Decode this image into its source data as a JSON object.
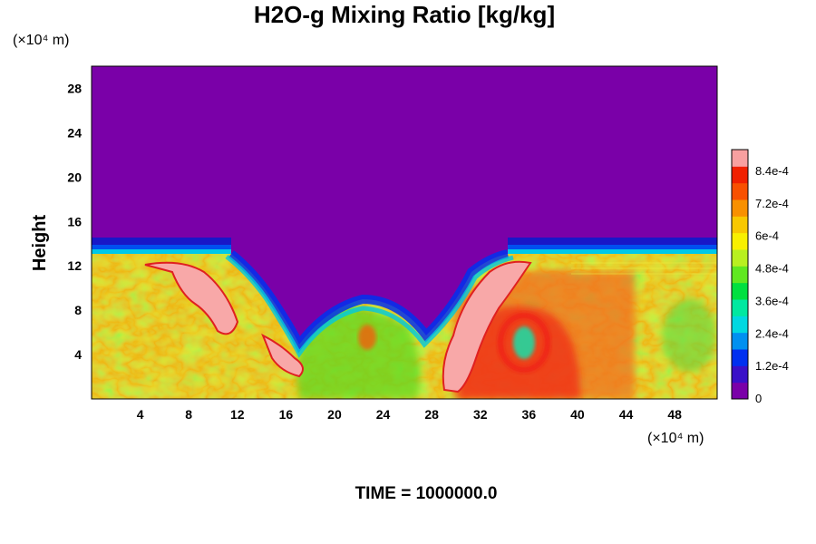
{
  "chart_data": {
    "type": "heatmap",
    "title": "H2O-g Mixing Ratio [kg/kg]",
    "ylabel": "Height",
    "xlabel": "",
    "y_unit": "(×10⁴ m)",
    "x_unit": "(×10⁴ m)",
    "xlim": [
      0,
      51.5
    ],
    "ylim": [
      0,
      30
    ],
    "x_ticks": [
      "4",
      "8",
      "12",
      "16",
      "20",
      "24",
      "28",
      "32",
      "36",
      "40",
      "44",
      "48"
    ],
    "y_ticks": [
      "4",
      "8",
      "12",
      "16",
      "20",
      "24",
      "28"
    ],
    "colorbar": {
      "range": [
        0,
        0.00092
      ],
      "labels": [
        "0",
        "1.2e-4",
        "2.4e-4",
        "3.6e-4",
        "4.8e-4",
        "6e-4",
        "7.2e-4",
        "8.4e-4"
      ],
      "label_values": [
        0,
        0.00012,
        0.00024,
        0.00036,
        0.00048,
        0.0006,
        0.00072,
        0.00084
      ],
      "colors": [
        "#7a00a8",
        "#3a10c8",
        "#0030f0",
        "#0090f0",
        "#00d8e0",
        "#00e8a0",
        "#00e040",
        "#60e820",
        "#b8f020",
        "#f8f000",
        "#f8c800",
        "#f89000",
        "#f85000",
        "#f02000",
        "#f8a0a0"
      ]
    },
    "field_summary": {
      "upper_layer_value": 0,
      "moist_layer_top_height": 13,
      "max_value": 0.00092
    },
    "footer": "TIME = 1000000.0"
  }
}
